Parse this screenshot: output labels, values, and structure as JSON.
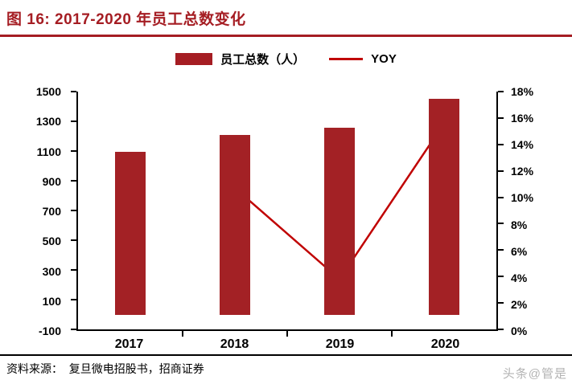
{
  "title": "图 16:  2017-2020 年员工总数变化",
  "legend": {
    "bars": "员工总数（人）",
    "line": "YOY"
  },
  "chart_data": {
    "type": "bar",
    "categories": [
      "2017",
      "2018",
      "2019",
      "2020"
    ],
    "series": [
      {
        "name": "员工总数（人）",
        "type": "bar",
        "axis": "left",
        "values": [
          1093,
          1210,
          1256,
          1452
        ]
      },
      {
        "name": "YOY",
        "type": "line",
        "axis": "right",
        "values": [
          null,
          10.7,
          3.8,
          15.6
        ],
        "unit": "%"
      }
    ],
    "left_axis": {
      "min": -100,
      "max": 1500,
      "step": 200,
      "ticks": [
        "1500",
        "1300",
        "1100",
        "900",
        "700",
        "500",
        "300",
        "100",
        "-100"
      ]
    },
    "right_axis": {
      "min": 0,
      "max": 18,
      "step": 2,
      "ticks": [
        "18%",
        "16%",
        "14%",
        "12%",
        "10%",
        "8%",
        "6%",
        "4%",
        "2%",
        "0%"
      ]
    },
    "grid": false,
    "legend_position": "top"
  },
  "footer": {
    "source": "资料来源：  复旦微电招股书，招商证券"
  },
  "watermark": "头条@管是",
  "colors": {
    "accent": "#A51D23",
    "bar": "#A32125",
    "line": "#C00000"
  }
}
